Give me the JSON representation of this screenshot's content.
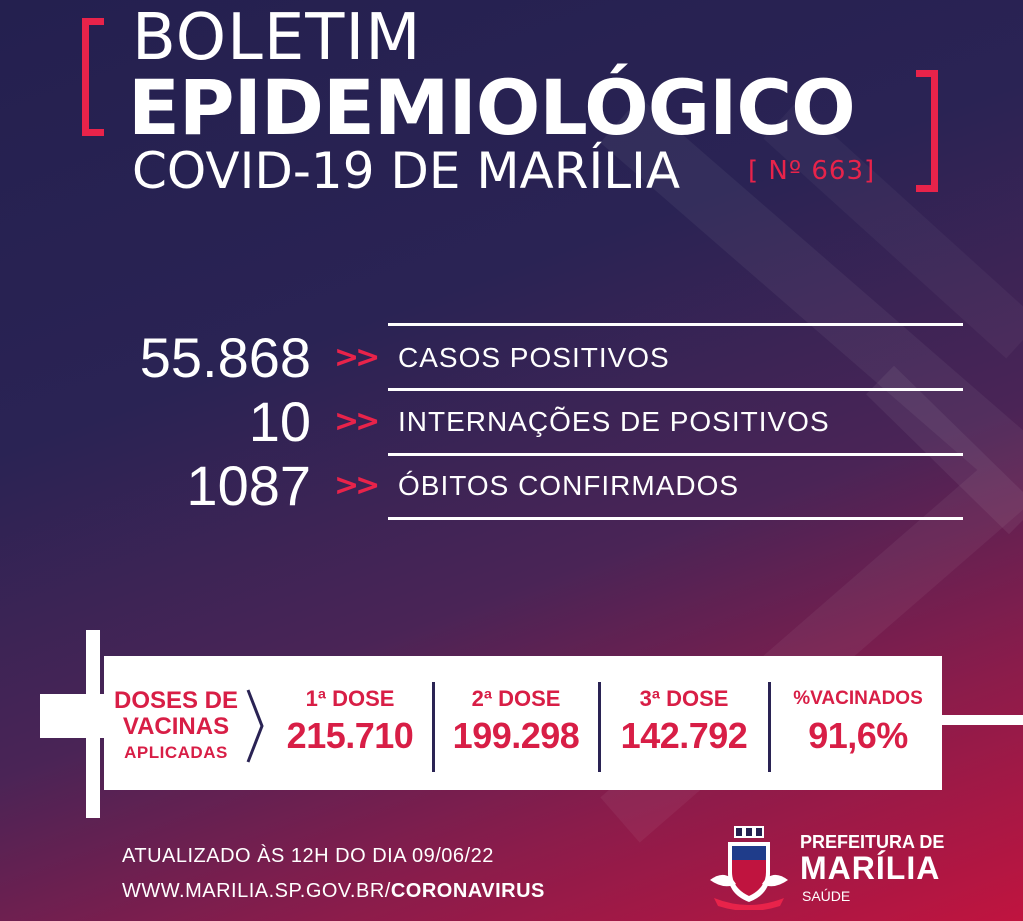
{
  "header": {
    "title_line1": "BOLETIM",
    "title_line2": "EPIDEMIOLÓGICO",
    "title_line3": "COVID-19 DE MARÍLIA",
    "edition": "[ Nº 663]"
  },
  "stats": [
    {
      "value": "55.868",
      "label": "CASOS POSITIVOS"
    },
    {
      "value": "10",
      "label": "INTERNAÇÕES DE POSITIVOS"
    },
    {
      "value": "1087",
      "label": "ÓBITOS CONFIRMADOS"
    }
  ],
  "arrow_glyph": ">>",
  "vaccines": {
    "title_line1": "DOSES DE",
    "title_line2": "VACINAS",
    "title_line3": "APLICADAS",
    "doses": [
      {
        "label": "1ª DOSE",
        "value": "215.710"
      },
      {
        "label": "2ª DOSE",
        "value": "199.298"
      },
      {
        "label": "3ª DOSE",
        "value": "142.792"
      },
      {
        "label": "%VACINADOS",
        "value": "91,6%"
      }
    ]
  },
  "footer": {
    "updated": "ATUALIZADO ÀS 12H DO DIA 09/06/22",
    "url_prefix": "WWW.MARILIA.SP.GOV.BR/",
    "url_bold": "CORONAVIRUS"
  },
  "prefeitura": {
    "line1": "PREFEITURA DE",
    "line2": "MARÍLIA",
    "line3": "SAÚDE"
  },
  "colors": {
    "accent": "#e8234a",
    "panel_text": "#d81e46",
    "background_dark": "#24204f",
    "background_red": "#c0143f"
  },
  "icons": [
    "city-crest-icon",
    "syringe-icon",
    "chevron-right-icon"
  ]
}
